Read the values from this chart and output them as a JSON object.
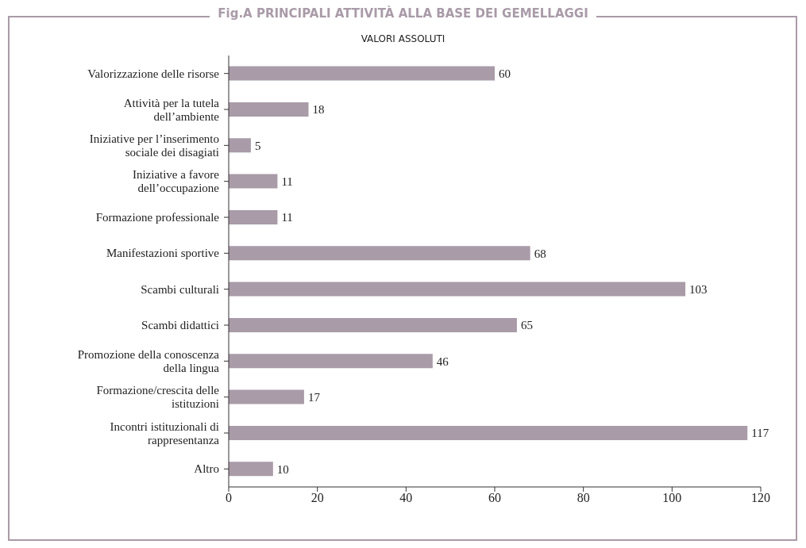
{
  "chart_data": {
    "type": "bar",
    "orientation": "horizontal",
    "title": "Fig.A PRINCIPALI ATTIVITÀ ALLA BASE DEI GEMELLAGGI",
    "subtitle": "VALORI ASSOLUTI",
    "categories": [
      "Valorizzazione delle risorse",
      "Attività per la tutela dell’ambiente",
      "Iniziative per l’inserimento sociale dei disagiati",
      "Iniziative a favore dell’occupazione",
      "Formazione  professionale",
      "Manifestazioni sportive",
      "Scambi culturali",
      "Scambi didattici",
      "Promozione della conoscenza della lingua",
      "Formazione/crescita delle istituzioni",
      "Incontri istituzionali di rappresentanza",
      "Altro"
    ],
    "values": [
      60,
      18,
      5,
      11,
      11,
      68,
      103,
      65,
      46,
      17,
      117,
      10
    ],
    "color": "#a99ba8",
    "xlim": [
      0,
      120
    ],
    "xticks": [
      0,
      20,
      40,
      60,
      80,
      100,
      120
    ],
    "data_labels": true,
    "grid": false
  }
}
